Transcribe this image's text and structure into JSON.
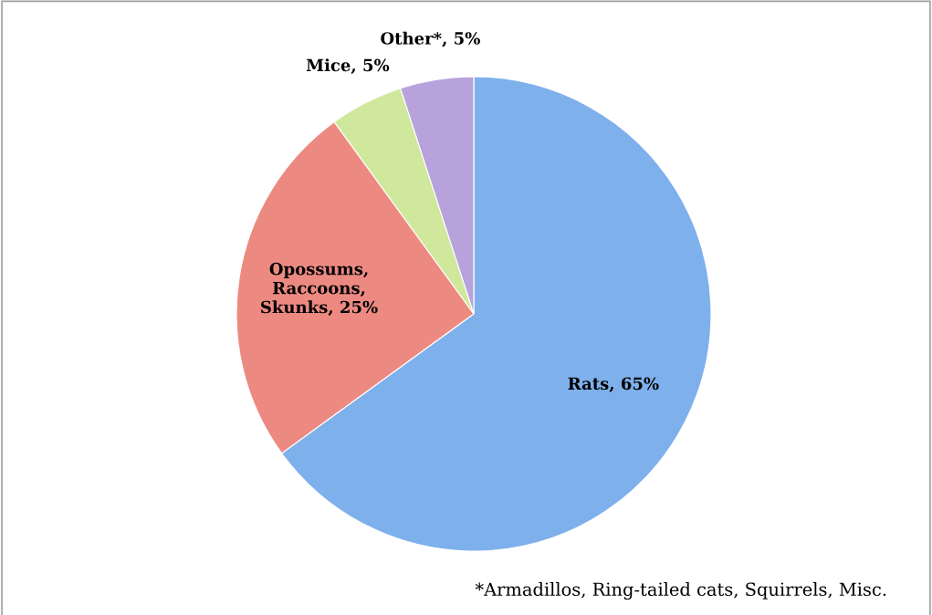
{
  "chart_data": {
    "type": "pie",
    "categories": [
      "Rats",
      "Opossums, Raccoons, Skunks",
      "Mice",
      "Other*"
    ],
    "values": [
      65,
      25,
      5,
      5
    ],
    "value_labels": [
      "65%",
      "25%",
      "5%",
      "5%"
    ],
    "colors": [
      "#7eb0ec",
      "#ec8a82",
      "#cfe89c",
      "#b8a2dc"
    ],
    "legend": false,
    "annotations": [
      "*Armadillos, Ring-tailed cats, Squirrels, Misc."
    ]
  }
}
